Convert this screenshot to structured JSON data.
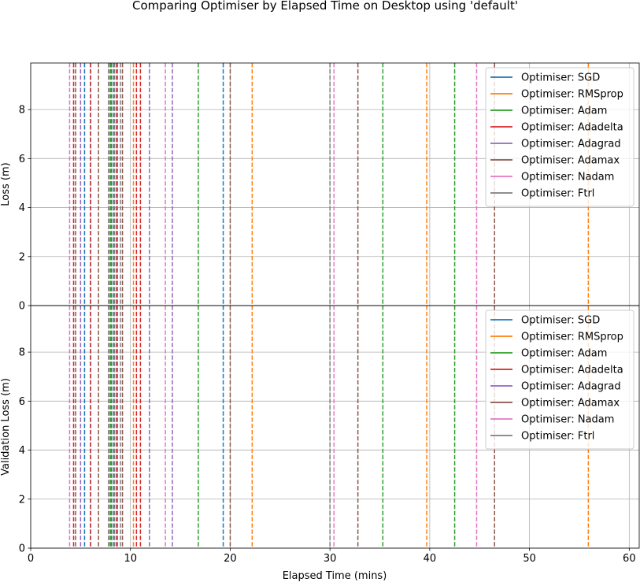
{
  "chart_data": {
    "type": "line",
    "title": "Comparing Optimiser by Elapsed Time on Desktop using 'default'",
    "xlabel": "Elapsed Time (mins)",
    "xlim": [
      0,
      61
    ],
    "x_ticks": [
      0,
      10,
      20,
      30,
      40,
      50,
      60
    ],
    "grid": true,
    "legend_position": "top-right",
    "series": [
      {
        "name": "Optimiser: SGD",
        "color": "#1f77b4",
        "x_dashed": [
          5.4,
          6.0,
          8.1,
          19.3
        ]
      },
      {
        "name": "Optimiser: RMSprop",
        "color": "#ff7f0e",
        "x_dashed": [
          10.3,
          22.2,
          39.7,
          55.9
        ]
      },
      {
        "name": "Optimiser: Adam",
        "color": "#2ca02c",
        "x_dashed": [
          8.0,
          8.3,
          16.8,
          35.3,
          42.5
        ]
      },
      {
        "name": "Optimiser: Adadelta",
        "color": "#d62728",
        "x_dashed": [
          4.3,
          6.0,
          8.6,
          10.6,
          11.0
        ]
      },
      {
        "name": "Optimiser: Adagrad",
        "color": "#9467bd",
        "x_dashed": [
          5.0,
          8.7,
          11.9,
          14.2
        ]
      },
      {
        "name": "Optimiser: Adamax",
        "color": "#8c564b",
        "x_dashed": [
          4.5,
          6.8,
          9.2,
          20.0,
          32.8,
          46.5
        ]
      },
      {
        "name": "Optimiser: Nadam",
        "color": "#e377c2",
        "x_dashed": [
          3.9,
          7.9,
          13.5,
          30.4,
          44.7
        ]
      },
      {
        "name": "Optimiser: Ftrl",
        "color": "#7f7f7f",
        "x_dashed": [
          7.8,
          8.4,
          9.0,
          30.0
        ]
      }
    ],
    "subplots": [
      {
        "ylabel": "Loss (m)",
        "ylim": [
          0,
          9.9
        ],
        "y_ticks": [
          0,
          2,
          4,
          6,
          8
        ]
      },
      {
        "ylabel": "Validation Loss (m)",
        "ylim": [
          0,
          9.9
        ],
        "y_ticks": [
          0,
          2,
          4,
          6,
          8
        ]
      }
    ]
  }
}
